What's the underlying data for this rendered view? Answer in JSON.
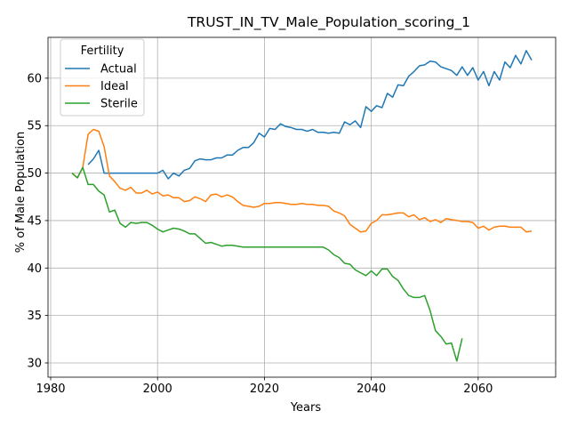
{
  "chart_data": {
    "type": "line",
    "title": "TRUST_IN_TV_Male_Population_scoring_1",
    "xlabel": "Years",
    "ylabel": "% of Male Population",
    "xlim": [
      1979.5,
      2074.5
    ],
    "ylim": [
      28.5,
      64.3
    ],
    "xticks": [
      1980,
      2000,
      2020,
      2040,
      2060
    ],
    "yticks": [
      30,
      35,
      40,
      45,
      50,
      55,
      60
    ],
    "grid": true,
    "legend": {
      "title": "Fertility",
      "placement": "top-left"
    },
    "series": [
      {
        "name": "Actual",
        "color": "#1f77b4",
        "x": [
          1987,
          1988,
          1989,
          1990,
          1991,
          1992,
          1993,
          1994,
          1995,
          1996,
          1997,
          1998,
          1999,
          2000,
          2001,
          2002,
          2003,
          2004,
          2005,
          2006,
          2007,
          2008,
          2009,
          2010,
          2011,
          2012,
          2013,
          2014,
          2015,
          2016,
          2017,
          2018,
          2019,
          2020,
          2021,
          2022,
          2023,
          2024,
          2025,
          2026,
          2027,
          2028,
          2029,
          2030,
          2031,
          2032,
          2033,
          2034,
          2035,
          2036,
          2037,
          2038,
          2039,
          2040,
          2041,
          2042,
          2043,
          2044,
          2045,
          2046,
          2047,
          2048,
          2049,
          2050,
          2051,
          2052,
          2053,
          2054,
          2055,
          2056,
          2057,
          2058,
          2059,
          2060,
          2061,
          2062,
          2063,
          2064,
          2065,
          2066,
          2067,
          2068,
          2069,
          2070
        ],
        "y": [
          50.9,
          51.5,
          52.4,
          50.0,
          50.0,
          50.0,
          50.0,
          50.0,
          50.0,
          50.0,
          50.0,
          50.0,
          50.0,
          50.0,
          50.3,
          49.4,
          50.0,
          49.7,
          50.3,
          50.5,
          51.3,
          51.5,
          51.4,
          51.4,
          51.6,
          51.6,
          51.9,
          51.9,
          52.4,
          52.7,
          52.7,
          53.2,
          54.2,
          53.8,
          54.7,
          54.6,
          55.2,
          54.9,
          54.8,
          54.6,
          54.6,
          54.4,
          54.6,
          54.3,
          54.3,
          54.2,
          54.3,
          54.2,
          55.4,
          55.1,
          55.5,
          54.8,
          57.0,
          56.5,
          57.1,
          56.9,
          58.4,
          58.0,
          59.3,
          59.2,
          60.2,
          60.7,
          61.3,
          61.4,
          61.8,
          61.7,
          61.2,
          61.0,
          60.8,
          60.3,
          61.2,
          60.3,
          61.1,
          59.8,
          60.7,
          59.2,
          60.7,
          59.8,
          61.7,
          61.1,
          62.4,
          61.5,
          62.9,
          61.9
        ]
      },
      {
        "name": "Ideal",
        "color": "#ff7f0e",
        "x": [
          1984,
          1985,
          1986,
          1987,
          1988,
          1989,
          1990,
          1991,
          1992,
          1993,
          1994,
          1995,
          1996,
          1997,
          1998,
          1999,
          2000,
          2001,
          2002,
          2003,
          2004,
          2005,
          2006,
          2007,
          2008,
          2009,
          2010,
          2011,
          2012,
          2013,
          2014,
          2015,
          2016,
          2017,
          2018,
          2019,
          2020,
          2021,
          2022,
          2023,
          2024,
          2025,
          2026,
          2027,
          2028,
          2029,
          2030,
          2031,
          2032,
          2033,
          2034,
          2035,
          2036,
          2037,
          2038,
          2039,
          2040,
          2041,
          2042,
          2043,
          2044,
          2045,
          2046,
          2047,
          2048,
          2049,
          2050,
          2051,
          2052,
          2053,
          2054,
          2055,
          2056,
          2057,
          2058,
          2059,
          2060,
          2061,
          2062,
          2063,
          2064,
          2065,
          2066,
          2067,
          2068,
          2069,
          2070
        ],
        "y": [
          50.0,
          49.5,
          50.6,
          54.1,
          54.6,
          54.4,
          52.8,
          49.7,
          49.1,
          48.4,
          48.2,
          48.5,
          47.9,
          47.9,
          48.2,
          47.8,
          48.0,
          47.6,
          47.7,
          47.4,
          47.4,
          47.0,
          47.1,
          47.5,
          47.3,
          47.0,
          47.7,
          47.8,
          47.5,
          47.7,
          47.5,
          47.0,
          46.6,
          46.5,
          46.4,
          46.5,
          46.8,
          46.8,
          46.9,
          46.9,
          46.8,
          46.7,
          46.7,
          46.8,
          46.7,
          46.7,
          46.6,
          46.6,
          46.5,
          46.0,
          45.8,
          45.5,
          44.6,
          44.2,
          43.8,
          43.9,
          44.7,
          45.0,
          45.6,
          45.6,
          45.7,
          45.8,
          45.8,
          45.4,
          45.6,
          45.1,
          45.3,
          44.9,
          45.1,
          44.8,
          45.2,
          45.1,
          45.0,
          44.9,
          44.9,
          44.8,
          44.2,
          44.4,
          44.0,
          44.3,
          44.4,
          44.4,
          44.3,
          44.3,
          44.3,
          43.8,
          43.9
        ]
      },
      {
        "name": "Sterile",
        "color": "#2ca02c",
        "x": [
          1984,
          1985,
          1986,
          1987,
          1988,
          1989,
          1990,
          1991,
          1992,
          1993,
          1994,
          1995,
          1996,
          1997,
          1998,
          1999,
          2000,
          2001,
          2002,
          2003,
          2004,
          2005,
          2006,
          2007,
          2008,
          2009,
          2010,
          2011,
          2012,
          2013,
          2014,
          2015,
          2016,
          2017,
          2018,
          2019,
          2020,
          2021,
          2022,
          2023,
          2024,
          2025,
          2026,
          2027,
          2028,
          2029,
          2030,
          2031,
          2032,
          2033,
          2034,
          2035,
          2036,
          2037,
          2038,
          2039,
          2040,
          2041,
          2042,
          2043,
          2044,
          2045,
          2046,
          2047,
          2048,
          2049,
          2050,
          2051,
          2052,
          2053,
          2054,
          2055,
          2056,
          2057
        ],
        "y": [
          50.0,
          49.5,
          50.6,
          48.8,
          48.8,
          48.1,
          47.7,
          45.9,
          46.1,
          44.7,
          44.3,
          44.8,
          44.7,
          44.8,
          44.8,
          44.5,
          44.1,
          43.8,
          44.0,
          44.2,
          44.1,
          43.9,
          43.6,
          43.6,
          43.1,
          42.6,
          42.7,
          42.5,
          42.3,
          42.4,
          42.4,
          42.3,
          42.2,
          42.2,
          42.2,
          42.2,
          42.2,
          42.2,
          42.2,
          42.2,
          42.2,
          42.2,
          42.2,
          42.2,
          42.2,
          42.2,
          42.2,
          42.2,
          41.9,
          41.4,
          41.1,
          40.5,
          40.4,
          39.8,
          39.5,
          39.2,
          39.7,
          39.2,
          39.9,
          39.9,
          39.1,
          38.7,
          37.8,
          37.1,
          36.9,
          36.9,
          37.1,
          35.5,
          33.4,
          32.8,
          32.0,
          32.1,
          30.2,
          32.6
        ]
      }
    ]
  }
}
